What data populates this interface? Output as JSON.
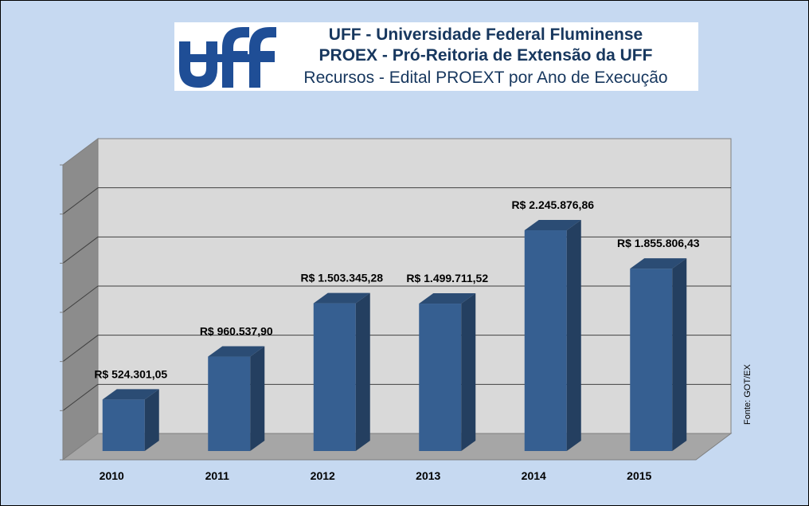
{
  "header": {
    "title_line1": "UFF - Universidade Federal Fluminense",
    "title_line2": "PROEX - Pró-Reitoria de Extensão da UFF",
    "title_line3": "Recursos - Edital PROEXT por Ano de Execução",
    "logo_text": "uff"
  },
  "source_note": "Fonte: GOT/EX",
  "colors": {
    "background": "#c6d9f1",
    "bar_front": "#365f91",
    "bar_side": "#243f60",
    "bar_top": "#2b4c74",
    "wall": "#d9d9d9",
    "floor": "#a6a6a6",
    "title": "#17375e"
  },
  "chart_data": {
    "type": "bar",
    "categories": [
      "2010",
      "2011",
      "2012",
      "2013",
      "2014",
      "2015"
    ],
    "values": [
      524301.05,
      960537.9,
      1503345.28,
      1499711.52,
      2245876.86,
      1855806.43
    ],
    "data_labels": [
      "R$ 524.301,05",
      "R$ 960.537,90",
      "R$ 1.503.345,28",
      "R$ 1.499.711,52",
      "R$ 2.245.876,86",
      "R$ 1.855.806,43"
    ],
    "ylim": [
      0,
      3000000
    ],
    "y_gridline_step": 500000,
    "y_tick_labels_shown": false,
    "grid": true,
    "legend": "none",
    "three_d": true
  }
}
